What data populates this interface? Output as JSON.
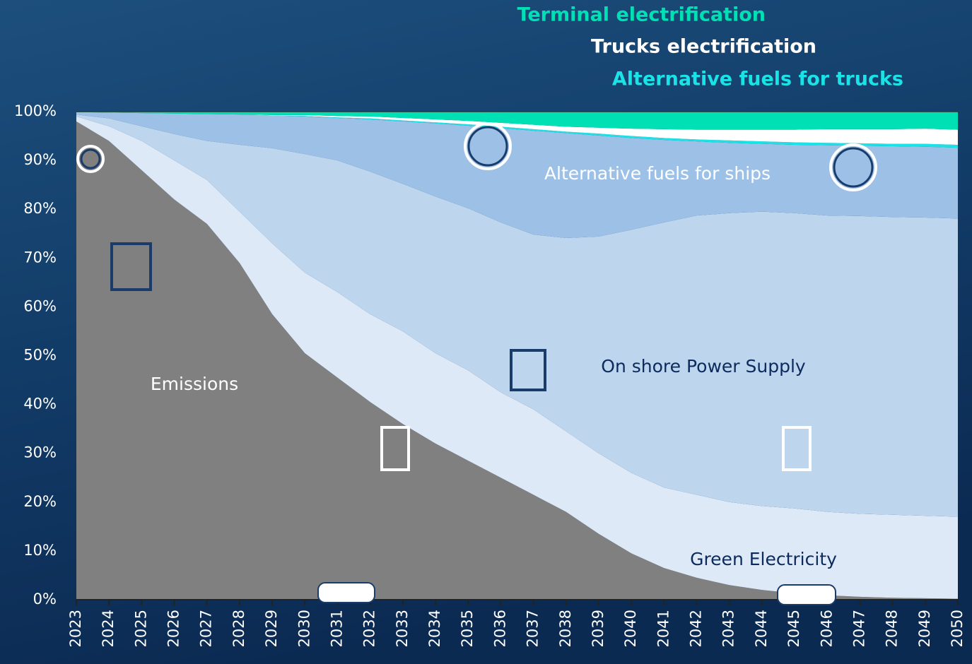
{
  "chart_data": {
    "type": "stacked-area",
    "categories": [
      "2023",
      "2024",
      "2025",
      "2026",
      "2027",
      "2028",
      "2029",
      "2030",
      "2031",
      "2032",
      "2033",
      "2034",
      "2035",
      "2036",
      "2037",
      "2038",
      "2039",
      "2040",
      "2041",
      "2042",
      "2043",
      "2044",
      "2045",
      "2046",
      "2047",
      "2048",
      "2049",
      "2050"
    ],
    "series": [
      {
        "name": "Emissions",
        "color": "#808080",
        "label_color": "#ffffff",
        "values": [
          98,
          94,
          88,
          82,
          77,
          69,
          58.5,
          50.5,
          45.5,
          40.5,
          36,
          32,
          28.5,
          25,
          21.5,
          18,
          13.5,
          9.5,
          6.5,
          4.5,
          3,
          2,
          1.3,
          0.9,
          0.6,
          0.4,
          0.3,
          0.2
        ]
      },
      {
        "name": "Green Electricity",
        "color": "#dde9f6",
        "label_color": "#0d2a5c",
        "values": [
          1,
          3,
          6,
          8,
          9,
          10.5,
          14.5,
          16.5,
          17.5,
          18,
          19,
          18.5,
          18.5,
          17.5,
          17.5,
          16.5,
          16.5,
          16.5,
          16.5,
          17,
          17,
          17.2,
          17.4,
          17.1,
          17,
          17,
          16.9,
          16.8
        ]
      },
      {
        "name": "On shore Power Supply",
        "color": "#bdd6ee",
        "label_color": "#0d2a5c",
        "values": [
          0.4,
          1.6,
          3,
          5.4,
          8,
          13.7,
          19.5,
          24.3,
          27,
          29.2,
          30.2,
          32.1,
          33.2,
          34.8,
          35.8,
          39.6,
          44.4,
          49.8,
          54.3,
          57.2,
          59.2,
          60.3,
          60.5,
          60.7,
          61,
          61,
          61.1,
          61.1
        ]
      },
      {
        "name": "Alternative fuels for ships",
        "color": "#9dc1e6",
        "label_color": "#ffffff",
        "values": [
          0.5,
          1.2,
          2.7,
          4.2,
          5.5,
          6.2,
          6.7,
          7.7,
          8.7,
          10.7,
          12.8,
          15,
          16.9,
          19.3,
          21.3,
          21.5,
          20.7,
          18.8,
          16.9,
          15.2,
          14.4,
          13.9,
          14,
          14.4,
          14.4,
          14.5,
          14.5,
          14.5
        ]
      },
      {
        "name": "Alternative fuels for trucks",
        "color": "#19e3e6",
        "label_color": "#19e3e6",
        "values": [
          0,
          0,
          0,
          0,
          0,
          0,
          0,
          0.1,
          0.1,
          0.2,
          0.2,
          0.2,
          0.3,
          0.3,
          0.3,
          0.3,
          0.4,
          0.4,
          0.4,
          0.4,
          0.5,
          0.5,
          0.5,
          0.5,
          0.5,
          0.5,
          0.6,
          0.6
        ]
      },
      {
        "name": "Trucks electrification",
        "color": "#ffffff",
        "label_color": "#ffffff",
        "values": [
          0,
          0,
          0,
          0,
          0,
          0,
          0.1,
          0.2,
          0.3,
          0.4,
          0.5,
          0.6,
          0.7,
          0.8,
          0.9,
          1,
          1.2,
          1.5,
          1.8,
          2,
          2.2,
          2.4,
          2.6,
          2.8,
          2.9,
          3,
          3.1,
          3.1
        ]
      },
      {
        "name": "Terminal electrification",
        "color": "#00e0b5",
        "label_color": "#00e0b5",
        "values": [
          0.1,
          0.2,
          0.3,
          0.4,
          0.5,
          0.6,
          0.7,
          0.7,
          0.9,
          1,
          1.3,
          1.6,
          1.9,
          2.3,
          2.7,
          3.1,
          3.3,
          3.5,
          3.6,
          3.7,
          3.7,
          3.7,
          3.7,
          3.6,
          3.6,
          3.6,
          3.5,
          3.7
        ]
      }
    ],
    "ylim": [
      0,
      100
    ],
    "yticks": [
      {
        "value": 0,
        "label": "0%"
      },
      {
        "value": 10,
        "label": "10%"
      },
      {
        "value": 20,
        "label": "20%"
      },
      {
        "value": 30,
        "label": "30%"
      },
      {
        "value": 40,
        "label": "40%"
      },
      {
        "value": 50,
        "label": "50%"
      },
      {
        "value": 60,
        "label": "60%"
      },
      {
        "value": 70,
        "label": "70%"
      },
      {
        "value": 80,
        "label": "80%"
      },
      {
        "value": 90,
        "label": "90%"
      },
      {
        "value": 100,
        "label": "100%"
      }
    ]
  }
}
